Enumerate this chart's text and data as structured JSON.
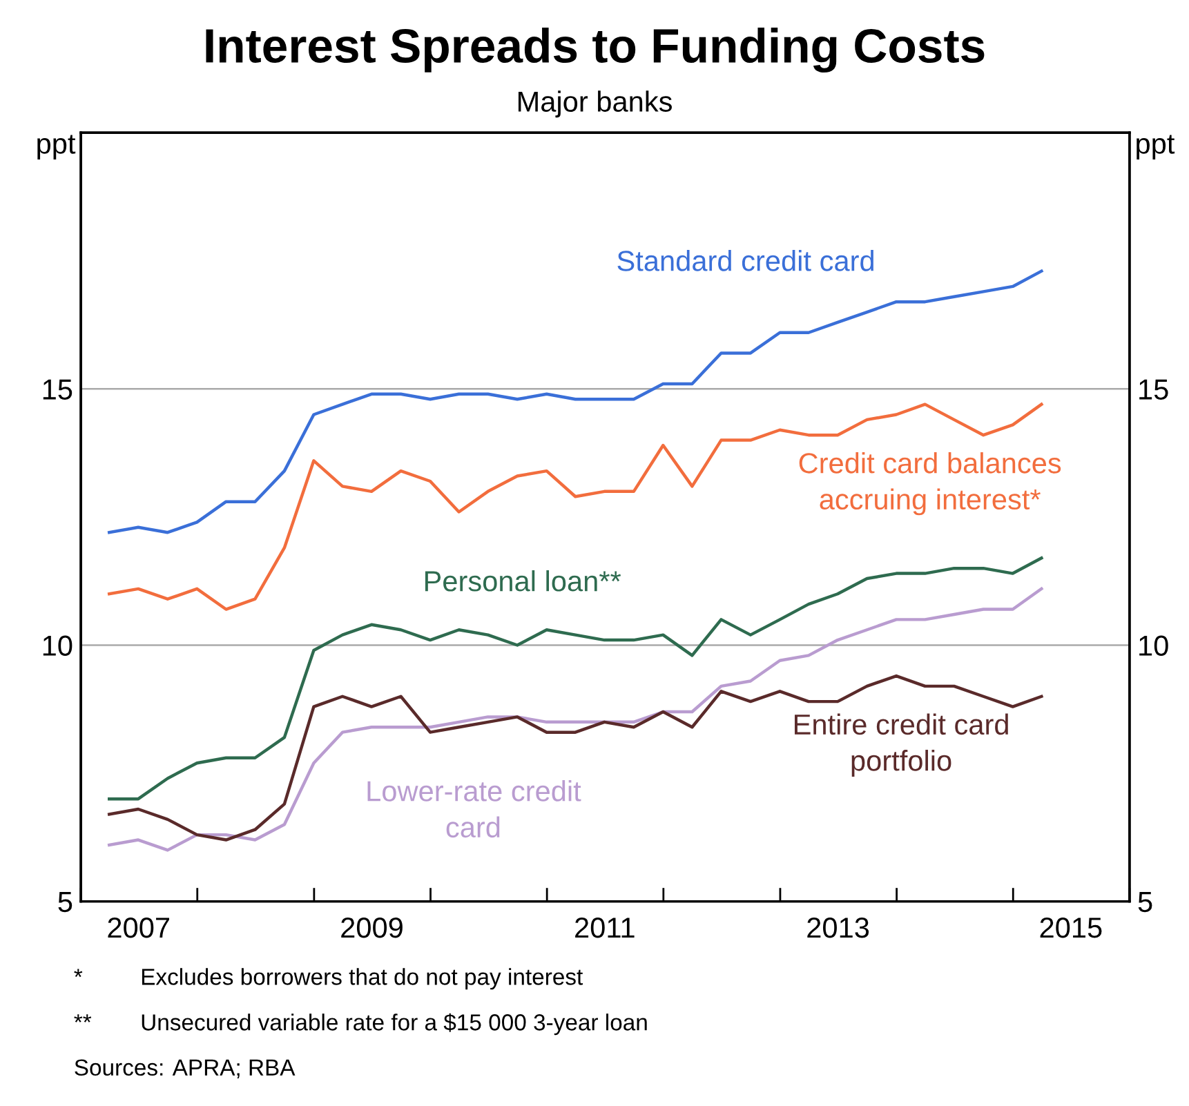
{
  "chart_data": {
    "type": "line",
    "title": "Interest Spreads to Funding Costs",
    "subtitle": "Major banks",
    "ylabel": "ppt",
    "y2label": "ppt",
    "x": [
      "2007-03-31",
      "2007-06-30",
      "2007-09-30",
      "2007-12-31",
      "2008-03-31",
      "2008-06-30",
      "2008-09-30",
      "2008-12-31",
      "2009-03-31",
      "2009-06-30",
      "2009-09-30",
      "2009-12-31",
      "2010-03-31",
      "2010-06-30",
      "2010-09-30",
      "2010-12-31",
      "2011-03-31",
      "2011-06-30",
      "2011-09-30",
      "2011-12-31",
      "2012-03-31",
      "2012-06-30",
      "2012-09-30",
      "2012-12-31",
      "2013-03-31",
      "2013-06-30",
      "2013-09-30",
      "2013-12-31",
      "2014-03-31",
      "2014-06-30",
      "2014-09-30",
      "2014-12-31",
      "2015-03-31"
    ],
    "series": [
      {
        "name": "Standard credit card",
        "color": "#3a6fd8",
        "values": [
          12.2,
          12.3,
          12.2,
          12.4,
          12.8,
          12.8,
          13.4,
          14.5,
          14.7,
          14.9,
          14.9,
          14.8,
          14.9,
          14.9,
          14.8,
          14.9,
          14.8,
          14.8,
          14.8,
          15.1,
          15.1,
          15.7,
          15.7,
          16.1,
          16.1,
          16.3,
          16.5,
          16.7,
          16.7,
          16.8,
          16.9,
          17.0,
          17.3
        ]
      },
      {
        "name": "Credit card balances\naccruing interest*",
        "color": "#f26d3d",
        "values": [
          11.0,
          11.1,
          10.9,
          11.1,
          10.7,
          10.9,
          11.9,
          13.6,
          13.1,
          13.0,
          13.4,
          13.2,
          12.6,
          13.0,
          13.3,
          13.4,
          12.9,
          13.0,
          13.0,
          13.9,
          13.1,
          14.0,
          14.0,
          14.2,
          14.1,
          14.1,
          14.4,
          14.5,
          14.7,
          14.4,
          14.1,
          14.3,
          14.7
        ]
      },
      {
        "name": "Personal loan**",
        "color": "#2e6b4f",
        "values": [
          7.0,
          7.0,
          7.4,
          7.7,
          7.8,
          7.8,
          8.2,
          9.9,
          10.2,
          10.4,
          10.3,
          10.1,
          10.3,
          10.2,
          10.0,
          10.3,
          10.2,
          10.1,
          10.1,
          10.2,
          9.8,
          10.5,
          10.2,
          10.5,
          10.8,
          11.0,
          11.3,
          11.4,
          11.4,
          11.5,
          11.5,
          11.4,
          11.7
        ]
      },
      {
        "name": "Lower-rate credit\ncard",
        "color": "#b99cd0",
        "values": [
          6.1,
          6.2,
          6.0,
          6.3,
          6.3,
          6.2,
          6.5,
          7.7,
          8.3,
          8.4,
          8.4,
          8.4,
          8.5,
          8.6,
          8.6,
          8.5,
          8.5,
          8.5,
          8.5,
          8.7,
          8.7,
          9.2,
          9.3,
          9.7,
          9.8,
          10.1,
          10.3,
          10.5,
          10.5,
          10.6,
          10.7,
          10.7,
          11.1
        ]
      },
      {
        "name": "Entire credit card\nportfolio",
        "color": "#5a2a2a",
        "values": [
          6.7,
          6.8,
          6.6,
          6.3,
          6.2,
          6.4,
          6.9,
          8.8,
          9.0,
          8.8,
          9.0,
          8.3,
          8.4,
          8.5,
          8.6,
          8.3,
          8.3,
          8.5,
          8.4,
          8.7,
          8.4,
          9.1,
          8.9,
          9.1,
          8.9,
          8.9,
          9.2,
          9.4,
          9.2,
          9.2,
          9.0,
          8.8,
          9.0
        ]
      }
    ],
    "xlim": [
      "2007-01-01",
      "2016-01-01"
    ],
    "xticks": [
      {
        "value": "2007-01-01",
        "label": null
      },
      {
        "value": "2007-07-01",
        "label": "2007"
      },
      {
        "value": "2008-01-01",
        "label": null
      },
      {
        "value": "2009-01-01",
        "label": null
      },
      {
        "value": "2009-07-01",
        "label": "2009"
      },
      {
        "value": "2010-01-01",
        "label": null
      },
      {
        "value": "2011-01-01",
        "label": null
      },
      {
        "value": "2011-07-01",
        "label": "2011"
      },
      {
        "value": "2012-01-01",
        "label": null
      },
      {
        "value": "2013-01-01",
        "label": null
      },
      {
        "value": "2013-07-01",
        "label": "2013"
      },
      {
        "value": "2014-01-01",
        "label": null
      },
      {
        "value": "2015-01-01",
        "label": null
      },
      {
        "value": "2015-07-01",
        "label": "2015"
      },
      {
        "value": "2016-01-01",
        "label": null
      }
    ],
    "ylim": [
      5,
      20
    ],
    "yticks": [
      5,
      10,
      15
    ],
    "y2lim": [
      5,
      20
    ],
    "y2ticks": [
      5,
      10,
      15
    ],
    "grid": "y",
    "legend": false,
    "annotations": [
      "* Excludes borrowers that do not pay interest",
      "** Unsecured variable rate for a $15 000 3-year loan",
      "Sources: APRA; RBA"
    ]
  }
}
